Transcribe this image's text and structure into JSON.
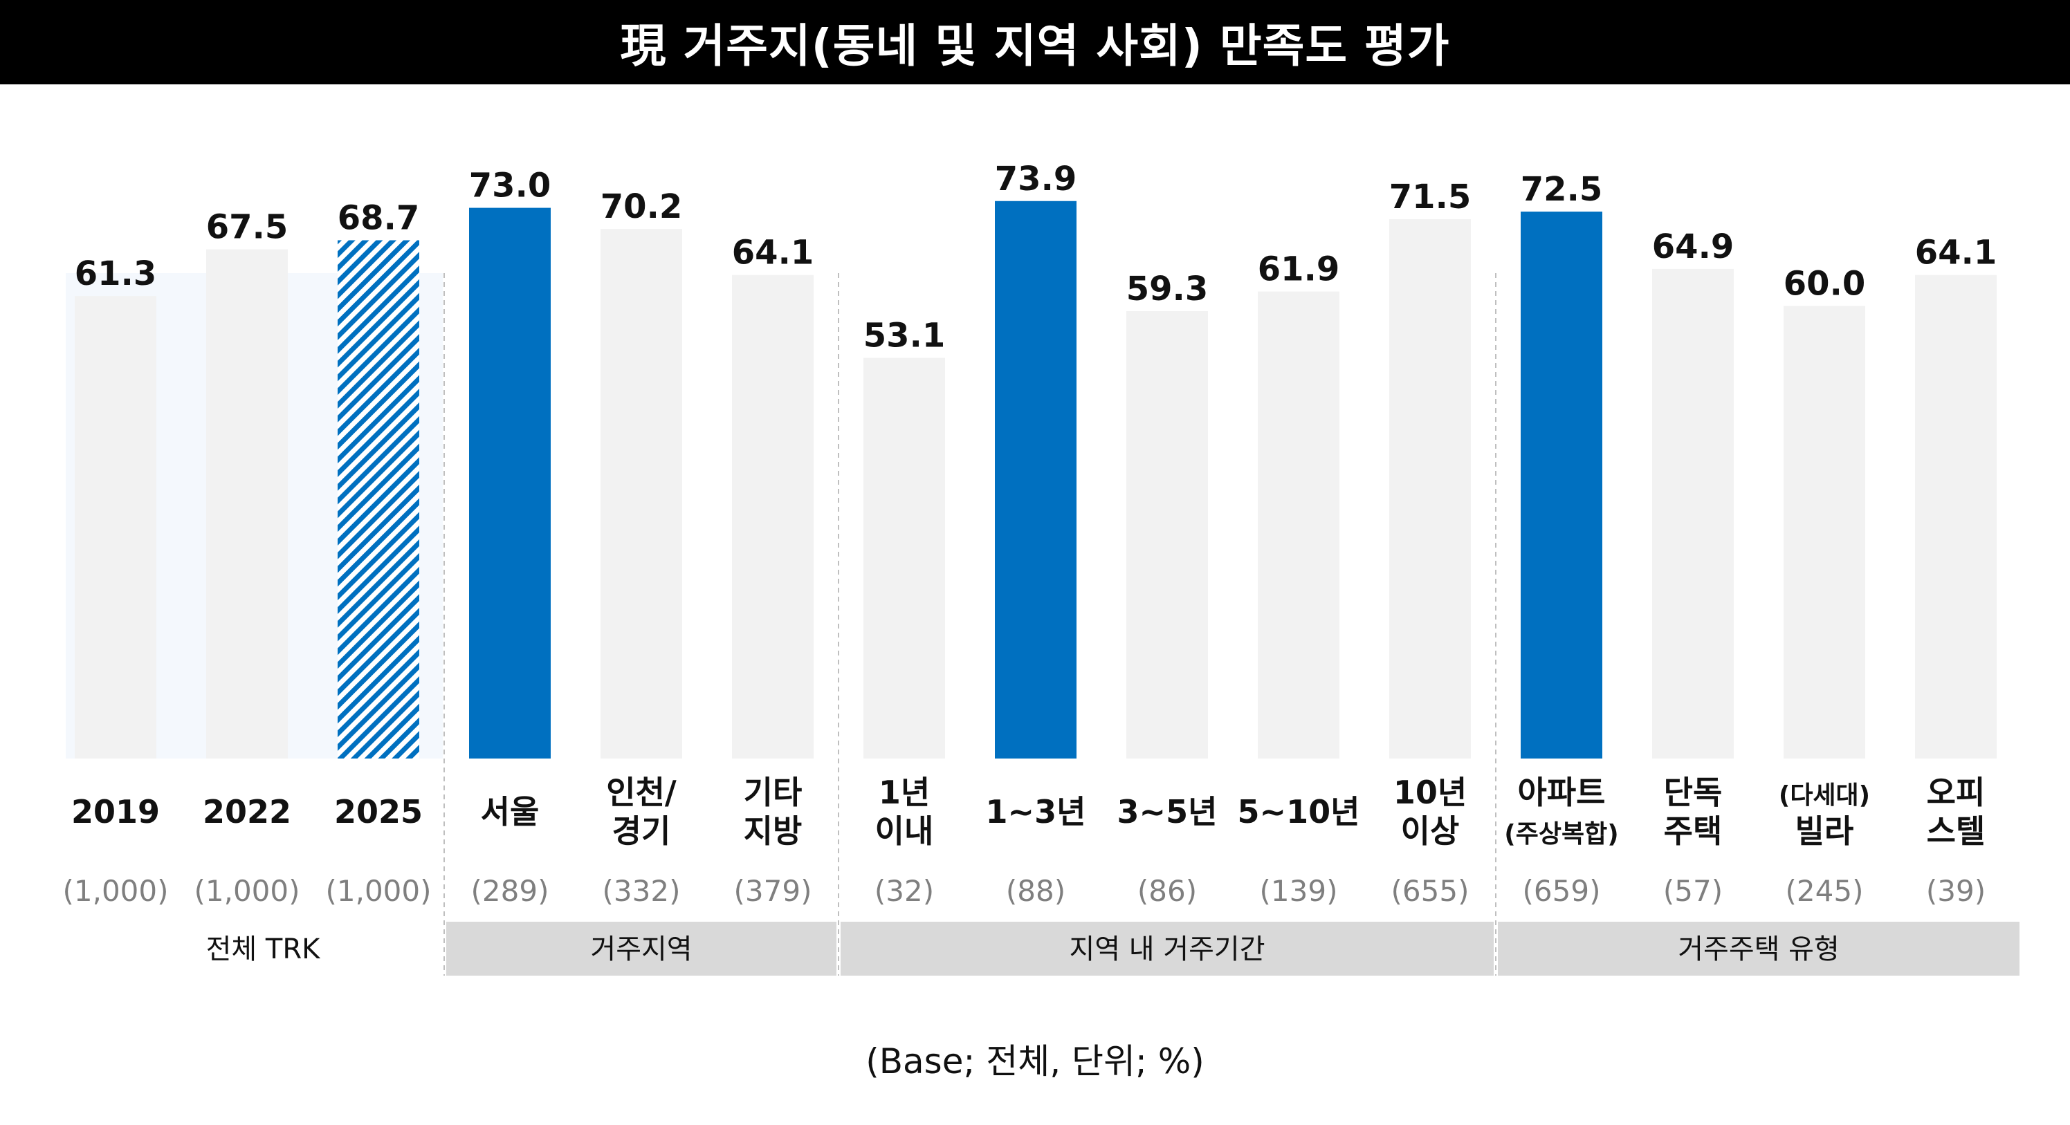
{
  "title": "現 거주지(동네 및 지역 사회) 만족도 평가",
  "footnote": "(Base; 전체, 단위; %)",
  "colors": {
    "highlight": "#0070c0",
    "default_bar": "#f2f2f2",
    "group_band": "#d9d9d9",
    "trk_background": "#f4f8fd",
    "text": "#111111",
    "base_text": "#7f7f7f"
  },
  "chart_data": {
    "type": "bar",
    "ylim": [
      0,
      100
    ],
    "groups": [
      {
        "label": "전체 TRK",
        "bars": [
          {
            "label_lines": [
              "2019"
            ],
            "base": "(1,000)",
            "value": 61.3,
            "value_label": "61.3",
            "style": "default"
          },
          {
            "label_lines": [
              "2022"
            ],
            "base": "(1,000)",
            "value": 67.5,
            "value_label": "67.5",
            "style": "default"
          },
          {
            "label_lines": [
              "2025"
            ],
            "base": "(1,000)",
            "value": 68.7,
            "value_label": "68.7",
            "style": "hatched"
          }
        ]
      },
      {
        "label": "거주지역",
        "bars": [
          {
            "label_lines": [
              "서울"
            ],
            "base": "(289)",
            "value": 73.0,
            "value_label": "73.0",
            "style": "highlight"
          },
          {
            "label_lines": [
              "인천/",
              "경기"
            ],
            "base": "(332)",
            "value": 70.2,
            "value_label": "70.2",
            "style": "default"
          },
          {
            "label_lines": [
              "기타",
              "지방"
            ],
            "base": "(379)",
            "value": 64.1,
            "value_label": "64.1",
            "style": "default"
          }
        ]
      },
      {
        "label": "지역 내 거주기간",
        "bars": [
          {
            "label_lines": [
              "1년",
              "이내"
            ],
            "base": "(32)",
            "value": 53.1,
            "value_label": "53.1",
            "style": "default"
          },
          {
            "label_lines": [
              "1~3년"
            ],
            "base": "(88)",
            "value": 73.9,
            "value_label": "73.9",
            "style": "highlight"
          },
          {
            "label_lines": [
              "3~5년"
            ],
            "base": "(86)",
            "value": 59.3,
            "value_label": "59.3",
            "style": "default"
          },
          {
            "label_lines": [
              "5~10년"
            ],
            "base": "(139)",
            "value": 61.9,
            "value_label": "61.9",
            "style": "default"
          },
          {
            "label_lines": [
              "10년",
              "이상"
            ],
            "base": "(655)",
            "value": 71.5,
            "value_label": "71.5",
            "style": "default"
          }
        ]
      },
      {
        "label": "거주주택 유형",
        "bars": [
          {
            "label_lines": [
              "아파트",
              "(주상복합)"
            ],
            "base": "(659)",
            "value": 72.5,
            "value_label": "72.5",
            "style": "highlight"
          },
          {
            "label_lines": [
              "단독",
              "주택"
            ],
            "base": "(57)",
            "value": 64.9,
            "value_label": "64.9",
            "style": "default"
          },
          {
            "label_lines": [
              "(다세대)",
              "빌라"
            ],
            "base": "(245)",
            "value": 60.0,
            "value_label": "60.0",
            "style": "default"
          },
          {
            "label_lines": [
              "오피",
              "스텔"
            ],
            "base": "(39)",
            "value": 64.1,
            "value_label": "64.1",
            "style": "default"
          }
        ]
      }
    ]
  }
}
